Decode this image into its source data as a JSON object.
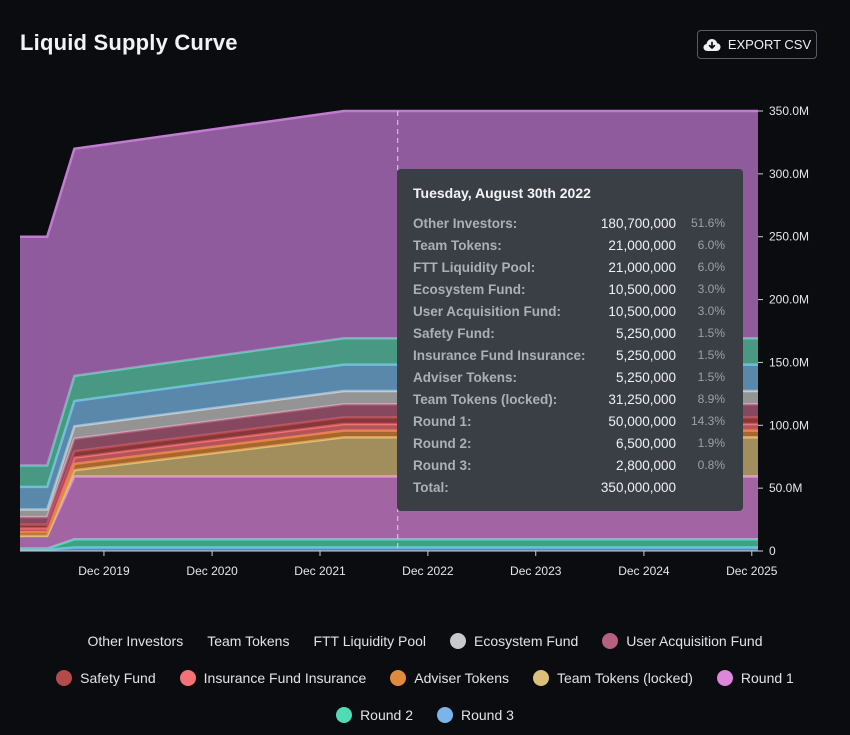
{
  "header": {
    "title": "Liquid Supply Curve",
    "export_label": "EXPORT CSV"
  },
  "tooltip": {
    "date": "Tuesday, August 30th 2022",
    "rows": [
      {
        "label": "Other Investors:",
        "value": "180,700,000",
        "pct": "51.6%"
      },
      {
        "label": "Team Tokens:",
        "value": "21,000,000",
        "pct": "6.0%"
      },
      {
        "label": "FTT Liquidity Pool:",
        "value": "21,000,000",
        "pct": "6.0%"
      },
      {
        "label": "Ecosystem Fund:",
        "value": "10,500,000",
        "pct": "3.0%"
      },
      {
        "label": "User Acquisition Fund:",
        "value": "10,500,000",
        "pct": "3.0%"
      },
      {
        "label": "Safety Fund:",
        "value": "5,250,000",
        "pct": "1.5%"
      },
      {
        "label": "Insurance Fund Insurance:",
        "value": "5,250,000",
        "pct": "1.5%"
      },
      {
        "label": "Adviser Tokens:",
        "value": "5,250,000",
        "pct": "1.5%"
      },
      {
        "label": "Team Tokens (locked):",
        "value": "31,250,000",
        "pct": "8.9%"
      },
      {
        "label": "Round 1:",
        "value": "50,000,000",
        "pct": "14.3%"
      },
      {
        "label": "Round 2:",
        "value": "6,500,000",
        "pct": "1.9%"
      },
      {
        "label": "Round 3:",
        "value": "2,800,000",
        "pct": "0.8%"
      },
      {
        "label": "Total:",
        "value": "350,000,000",
        "pct": ""
      }
    ]
  },
  "legend": {
    "rows": [
      [
        {
          "label": "Other Investors",
          "color": ""
        },
        {
          "label": "Team Tokens",
          "color": ""
        },
        {
          "label": "FTT Liquidity Pool",
          "color": ""
        },
        {
          "label": "Ecosystem Fund",
          "color": "#c9c9c9"
        },
        {
          "label": "User Acquisition Fund",
          "color": "#b5607e"
        }
      ],
      [
        {
          "label": "Safety Fund",
          "color": "#b54a4a"
        },
        {
          "label": "Insurance Fund Insurance",
          "color": "#f27276"
        },
        {
          "label": "Adviser Tokens",
          "color": "#e08a3c"
        },
        {
          "label": "Team Tokens (locked)",
          "color": "#dcc07a"
        },
        {
          "label": "Round 1",
          "color": "#dc86dc"
        }
      ],
      [
        {
          "label": "Round 2",
          "color": "#4fdcb4"
        },
        {
          "label": "Round 3",
          "color": "#7ab4ec"
        }
      ]
    ]
  },
  "chart_data": {
    "type": "area",
    "stacked": true,
    "x_ticks": [
      "Dec 2019",
      "Dec 2020",
      "Dec 2021",
      "Dec 2022",
      "Dec 2023",
      "Dec 2024",
      "Dec 2025"
    ],
    "y_ticks": [
      "0",
      "50.0M",
      "100.0M",
      "150.0M",
      "200.0M",
      "250.0M",
      "300.0M",
      "350.0M"
    ],
    "ylim": [
      0,
      350000000
    ],
    "hover_date": "2022-08-30",
    "x": [
      "2019-03-01",
      "2019-06-01",
      "2019-09-01",
      "2022-03-01",
      "2025-12-31"
    ],
    "series": [
      {
        "name": "Round 3",
        "color": "#7ab4ec",
        "values": [
          1000000,
          1000000,
          2800000,
          2800000,
          2800000
        ]
      },
      {
        "name": "Round 2",
        "color": "#4fdcb4",
        "values": [
          1000000,
          1000000,
          6500000,
          6500000,
          6500000
        ]
      },
      {
        "name": "Round 1",
        "color": "#dc86dc",
        "values": [
          10000000,
          10000000,
          50000000,
          50000000,
          50000000
        ]
      },
      {
        "name": "Team Tokens (locked)",
        "color": "#dcc07a",
        "values": [
          0,
          0,
          5000000,
          31250000,
          31250000
        ]
      },
      {
        "name": "Adviser Tokens",
        "color": "#e08a3c",
        "values": [
          3000000,
          3000000,
          5000000,
          5250000,
          5250000
        ]
      },
      {
        "name": "Insurance Fund Insurance",
        "color": "#f27276",
        "values": [
          3000000,
          3000000,
          5000000,
          5250000,
          5250000
        ]
      },
      {
        "name": "Safety Fund",
        "color": "#b54a4a",
        "values": [
          3000000,
          3000000,
          5000000,
          5250000,
          5250000
        ]
      },
      {
        "name": "User Acquisition Fund",
        "color": "#b5607e",
        "values": [
          6000000,
          6000000,
          10000000,
          10500000,
          10500000
        ]
      },
      {
        "name": "Ecosystem Fund",
        "color": "#c9c9c9",
        "values": [
          6000000,
          6000000,
          10000000,
          10500000,
          10500000
        ]
      },
      {
        "name": "FTT Liquidity Pool",
        "color": "#78b8e8",
        "values": [
          18000000,
          18000000,
          20000000,
          21000000,
          21000000
        ]
      },
      {
        "name": "Team Tokens",
        "color": "#5fcfb0",
        "values": [
          17000000,
          17000000,
          20000000,
          21000000,
          21000000
        ]
      },
      {
        "name": "Other Investors",
        "color": "#c27ad2",
        "values": [
          182000000,
          182000000,
          180700000,
          180700000,
          180700000
        ]
      }
    ]
  }
}
